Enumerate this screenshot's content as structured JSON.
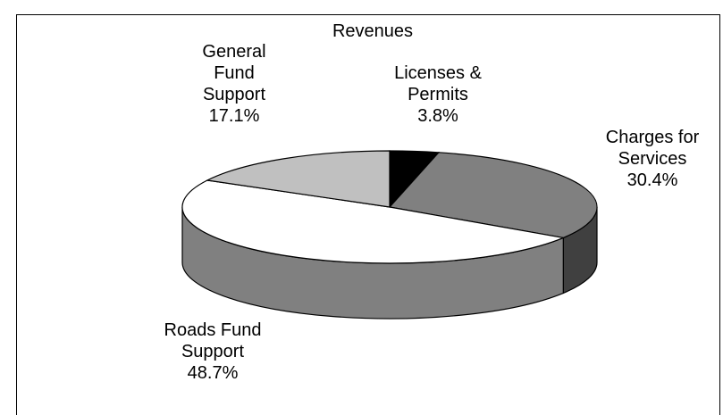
{
  "chart_data": {
    "type": "pie3d",
    "title": "Revenues",
    "categories": [
      "Licenses & Permits",
      "Charges for Services",
      "Roads Fund Support",
      "General Fund Support"
    ],
    "values": [
      3.8,
      30.4,
      48.7,
      17.1
    ],
    "value_labels": [
      "3.8%",
      "30.4%",
      "48.7%",
      "17.1%"
    ],
    "colors": [
      "#000000",
      "#808080",
      "#ffffff",
      "#c0c0c0"
    ]
  }
}
